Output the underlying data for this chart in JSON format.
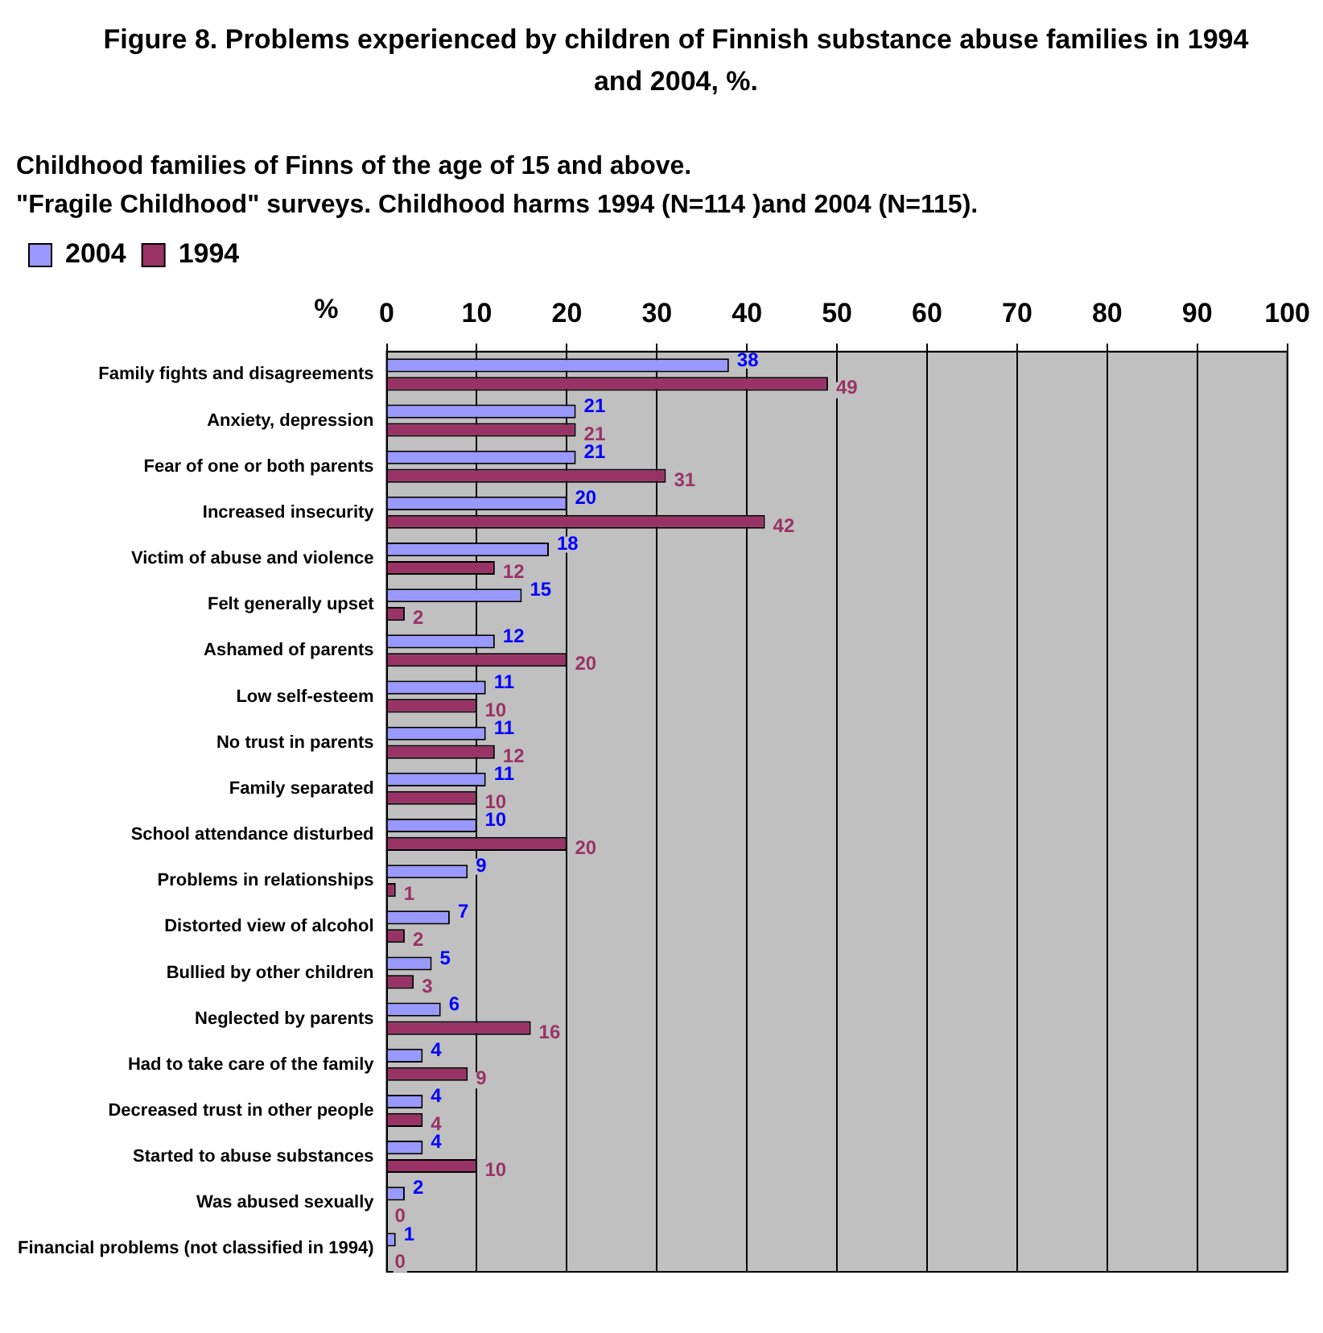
{
  "chart_data": {
    "type": "bar",
    "orientation": "horizontal",
    "title": "Figure 8. Problems experienced by children of Finnish substance abuse families in 1994 and 2004, %.",
    "subtitle": "Childhood families of Finns of the age of 15 and above.\n\"Fragile Childhood\" surveys. Childhood harms 1994 (N=114 )and 2004 (N=115).",
    "xlabel": "%",
    "categories": [
      "Family fights and disagreements",
      "Anxiety, depression",
      "Fear of one or both parents",
      "Increased insecurity",
      "Victim of abuse and violence",
      "Felt generally upset",
      "Ashamed of parents",
      "Low self-esteem",
      "No trust in parents",
      "Family separated",
      "School attendance disturbed",
      "Problems in relationships",
      "Distorted view of alcohol",
      "Bullied by other children",
      "Neglected by parents",
      "Had to take care of the family",
      "Decreased trust in other people",
      "Started to abuse substances",
      "Was abused sexually",
      "Financial problems (not classified in 1994)"
    ],
    "series": [
      {
        "name": "2004",
        "color": "#9999ff",
        "values": [
          38,
          21,
          21,
          20,
          18,
          15,
          12,
          11,
          11,
          11,
          10,
          9,
          7,
          5,
          6,
          4,
          4,
          4,
          2,
          1
        ]
      },
      {
        "name": "1994",
        "color": "#993366",
        "values": [
          49,
          21,
          31,
          42,
          12,
          2,
          20,
          10,
          12,
          10,
          20,
          1,
          2,
          3,
          16,
          9,
          4,
          10,
          0,
          0
        ]
      }
    ],
    "xlim": [
      0,
      100
    ],
    "xticks": [
      0,
      10,
      20,
      30,
      40,
      50,
      60,
      70,
      80,
      90,
      100
    ],
    "grid": "x",
    "legend": "top left",
    "data_labels": true
  }
}
